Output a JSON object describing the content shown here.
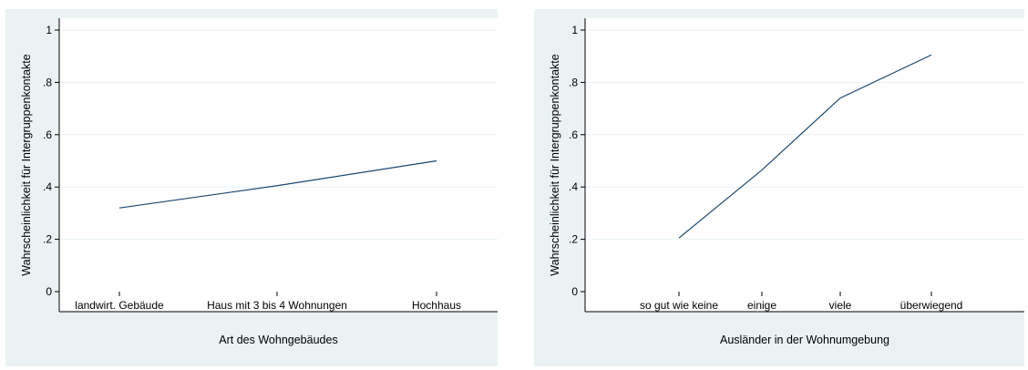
{
  "chart_data": [
    {
      "type": "line",
      "categories": [
        "landwirt. Gebäude",
        "Haus mit 3 bis 4 Wohnungen",
        "Hochhaus"
      ],
      "values": [
        0.32,
        0.405,
        0.5
      ],
      "xlabel": "Art des Wohngebäudes",
      "ylabel": "Wahrscheinlichkeit für Intergruppenkontakte",
      "ylim": [
        0,
        1
      ],
      "yticks": [
        "0",
        ".2",
        ".4",
        ".6",
        ".8",
        "1"
      ],
      "grid": true,
      "series_color": "#1a476f",
      "background_color": "#eaf2f3"
    },
    {
      "type": "line",
      "categories": [
        "so gut wie keine",
        "einige",
        "viele",
        "überwiegend"
      ],
      "values": [
        0.205,
        0.465,
        0.74,
        0.905
      ],
      "xlabel": "Ausländer in der Wohnumgebung",
      "ylabel": "Wahrscheinlichkeit für Intergruppenkontakte",
      "ylim": [
        0,
        1
      ],
      "yticks": [
        "0",
        ".2",
        ".4",
        ".6",
        ".8",
        "1"
      ],
      "grid": true,
      "series_color": "#1a476f",
      "background_color": "#eaf2f3"
    }
  ]
}
